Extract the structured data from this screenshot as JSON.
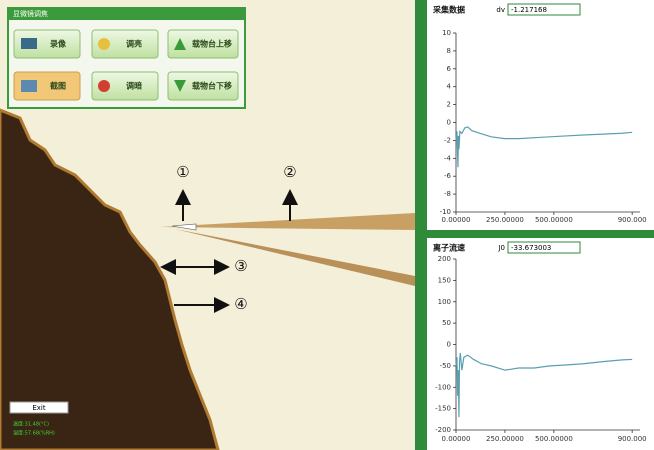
{
  "window": {
    "panel_title": "显微镜调焦",
    "buttons": [
      "录像",
      "调亮",
      "载物台上移",
      "截图",
      "调暗",
      "载物台下移"
    ],
    "exit": "Exit",
    "status": [
      "温度:31.48(°C)",
      "湿度:57.68(%RH)"
    ]
  },
  "annotations": [
    "①",
    "②",
    "③",
    "④"
  ],
  "chart_data": [
    {
      "type": "line",
      "title": "采集数据",
      "param_label": "dv",
      "param_value": "-1.217168",
      "xlim": [
        0,
        940
      ],
      "ylim": [
        -10,
        10
      ],
      "xticks": [
        {
          "value": 0,
          "label": "0.00000"
        },
        {
          "value": 250,
          "label": "250.00000"
        },
        {
          "value": 500,
          "label": "500.00000"
        },
        {
          "value": 900,
          "label": "900.000"
        }
      ],
      "yticks": [
        10,
        8,
        6,
        4,
        2,
        0,
        -2,
        -4,
        -6,
        -8,
        -10
      ],
      "color": "#5a9fb0",
      "x": [
        0,
        5,
        8,
        10,
        12,
        15,
        20,
        30,
        45,
        60,
        80,
        120,
        180,
        250,
        320,
        400,
        480,
        560,
        650,
        750,
        850,
        900
      ],
      "values": [
        -2,
        -1,
        -3.5,
        -5,
        -1.5,
        -3,
        -1,
        -1.2,
        -0.6,
        -0.5,
        -0.9,
        -1.2,
        -1.6,
        -1.8,
        -1.8,
        -1.7,
        -1.6,
        -1.5,
        -1.4,
        -1.3,
        -1.2,
        -1.1
      ]
    },
    {
      "type": "line",
      "title": "离子流速",
      "param_label": "J0",
      "param_value": "-33.673003",
      "xlim": [
        0,
        940
      ],
      "ylim": [
        -200,
        200
      ],
      "xticks": [
        {
          "value": 0,
          "label": "0.00000"
        },
        {
          "value": 250,
          "label": "250.00000"
        },
        {
          "value": 500,
          "label": "500.00000"
        },
        {
          "value": 900,
          "label": "900.000"
        }
      ],
      "yticks": [
        200,
        150,
        100,
        50,
        0,
        -50,
        -100,
        -150,
        -200
      ],
      "color": "#5a9fb0",
      "x": [
        0,
        5,
        8,
        12,
        15,
        18,
        22,
        30,
        40,
        60,
        90,
        130,
        180,
        250,
        320,
        400,
        480,
        560,
        650,
        750,
        850,
        900
      ],
      "values": [
        -50,
        -30,
        -120,
        -60,
        -170,
        -40,
        -20,
        -60,
        -30,
        -25,
        -35,
        -45,
        -50,
        -60,
        -55,
        -55,
        -50,
        -48,
        -45,
        -40,
        -36,
        -35
      ]
    }
  ]
}
